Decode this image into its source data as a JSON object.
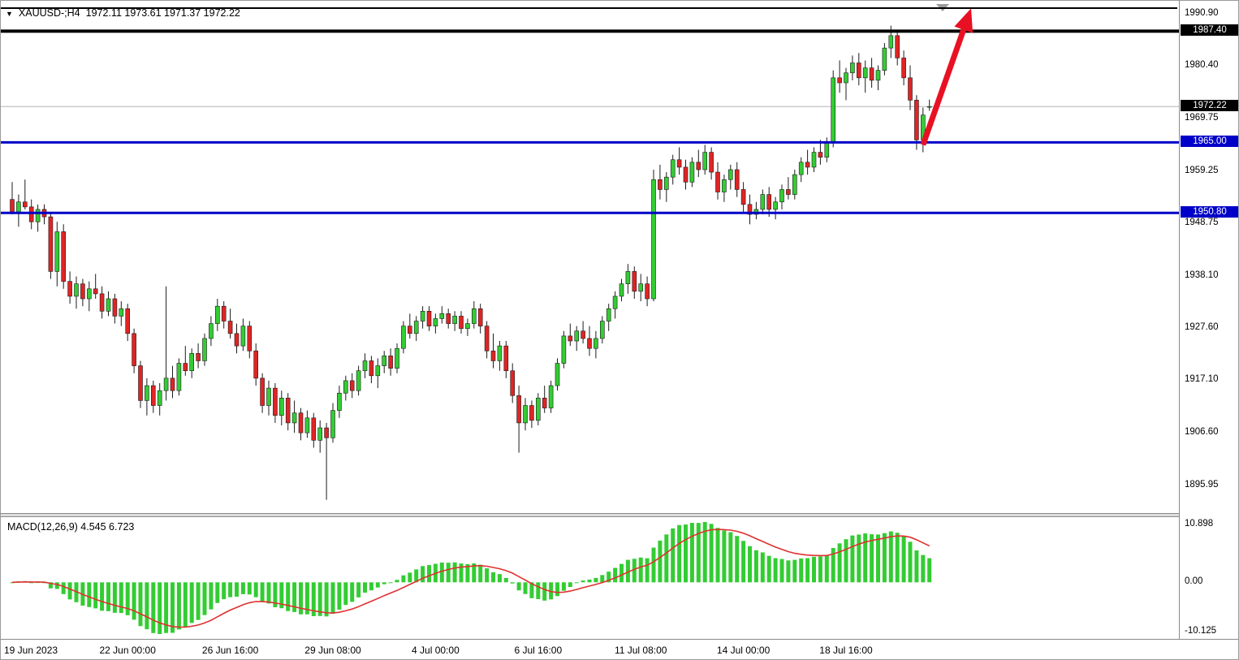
{
  "header": {
    "symbol": "XAUUSD-;H4",
    "ohlc": "1972.11 1973.61 1971.37 1972.22"
  },
  "colors": {
    "bull": "#33cc33",
    "bear": "#e02424",
    "wick": "#1c1c1c",
    "candle_border": "#1c1c1c",
    "current_price_line": "#b4b4b4",
    "black_level": "#000000",
    "blue_level": "#0000c8",
    "arrow": "#e81123",
    "shift_marker": "#9c9c9c"
  },
  "chart_data": {
    "type": "candlestick",
    "symbol": "XAUUSD-",
    "timeframe": "H4",
    "price_range": [
      1890.5,
      1992.2
    ],
    "price_scale_labels": [
      "1990.90",
      "1980.40",
      "1969.75",
      "1959.25",
      "1948.75",
      "1938.10",
      "1927.60",
      "1917.10",
      "1906.60",
      "1895.95"
    ],
    "horizontal_lines": [
      {
        "name": "resistance-line-1987-40",
        "price": 1987.4,
        "label": "1987.40",
        "color": "#000000",
        "width": 4,
        "label_bg": "#000000"
      },
      {
        "name": "support-line-1965-00",
        "price": 1965.0,
        "label": "1965.00",
        "color": "#0000c8",
        "width": 3,
        "label_bg": "#0000c8"
      },
      {
        "name": "support-line-1950-80",
        "price": 1950.8,
        "label": "1950.80",
        "color": "#0000c8",
        "width": 3,
        "label_bg": "#0000c8"
      }
    ],
    "current_price": {
      "value": 1972.22,
      "label": "1972.22",
      "label_bg": "#000000"
    },
    "annotations": [
      {
        "type": "arrow",
        "name": "bullish-trend-arrow",
        "color": "#e81123",
        "from": {
          "bar": 142,
          "price": 1964.5
        },
        "to": {
          "bar": 149.5,
          "price": 1992.0
        }
      }
    ],
    "time_labels": [
      {
        "text": "19 Jun 2023",
        "bar": 0
      },
      {
        "text": "22 Jun 00:00",
        "bar": 18
      },
      {
        "text": "26 Jun 16:00",
        "bar": 34
      },
      {
        "text": "29 Jun 08:00",
        "bar": 50
      },
      {
        "text": "4 Jul 00:00",
        "bar": 66
      },
      {
        "text": "6 Jul 16:00",
        "bar": 82
      },
      {
        "text": "11 Jul 08:00",
        "bar": 98
      },
      {
        "text": "14 Jul 00:00",
        "bar": 114
      },
      {
        "text": "18 Jul 16:00",
        "bar": 130
      }
    ],
    "indicator": {
      "name": "MACD",
      "params": [
        12,
        26,
        9
      ],
      "display": "MACD(12,26,9) 4.545 6.723",
      "values": [
        4.545,
        6.723
      ],
      "axis_labels": [
        "10.898",
        "0.00",
        "-10.125"
      ],
      "histogram_color": "#33cc33",
      "signal_color": "#e03030"
    },
    "candles": [
      [
        1953.5,
        1957.0,
        1950.5,
        1951.0
      ],
      [
        1951.0,
        1954.5,
        1948.0,
        1953.0
      ],
      [
        1953.0,
        1957.5,
        1951.5,
        1952.0
      ],
      [
        1952.0,
        1953.5,
        1947.5,
        1949.0
      ],
      [
        1949.0,
        1952.5,
        1947.0,
        1951.5
      ],
      [
        1951.5,
        1952.5,
        1948.5,
        1950.0
      ],
      [
        1950.0,
        1951.0,
        1937.5,
        1939.0
      ],
      [
        1939.0,
        1949.0,
        1936.0,
        1947.0
      ],
      [
        1947.0,
        1948.5,
        1935.5,
        1937.0
      ],
      [
        1937.0,
        1939.0,
        1932.5,
        1934.0
      ],
      [
        1934.0,
        1938.0,
        1931.5,
        1936.5
      ],
      [
        1936.5,
        1937.5,
        1932.0,
        1933.5
      ],
      [
        1933.5,
        1937.0,
        1931.0,
        1935.5
      ],
      [
        1935.5,
        1938.5,
        1933.5,
        1934.5
      ],
      [
        1934.5,
        1936.0,
        1929.5,
        1931.0
      ],
      [
        1931.0,
        1935.0,
        1930.0,
        1933.5
      ],
      [
        1933.5,
        1934.5,
        1928.5,
        1930.0
      ],
      [
        1930.0,
        1933.0,
        1928.0,
        1931.5
      ],
      [
        1931.5,
        1932.5,
        1925.0,
        1926.5
      ],
      [
        1926.5,
        1927.5,
        1918.5,
        1920.0
      ],
      [
        1920.0,
        1921.0,
        1911.5,
        1913.0
      ],
      [
        1913.0,
        1917.5,
        1910.0,
        1916.0
      ],
      [
        1916.0,
        1917.0,
        1910.5,
        1912.0
      ],
      [
        1912.0,
        1916.5,
        1910.0,
        1915.0
      ],
      [
        1915.0,
        1936.0,
        1913.0,
        1917.5
      ],
      [
        1917.5,
        1920.0,
        1913.5,
        1915.0
      ],
      [
        1915.0,
        1921.5,
        1914.0,
        1920.5
      ],
      [
        1920.5,
        1924.0,
        1918.0,
        1919.0
      ],
      [
        1919.0,
        1923.5,
        1917.5,
        1922.5
      ],
      [
        1922.5,
        1924.5,
        1919.5,
        1921.0
      ],
      [
        1921.0,
        1926.5,
        1920.0,
        1925.5
      ],
      [
        1925.5,
        1930.0,
        1924.0,
        1928.5
      ],
      [
        1928.5,
        1933.5,
        1927.0,
        1932.0
      ],
      [
        1932.0,
        1933.0,
        1927.5,
        1929.0
      ],
      [
        1929.0,
        1931.5,
        1925.5,
        1926.5
      ],
      [
        1926.5,
        1928.5,
        1922.5,
        1924.0
      ],
      [
        1924.0,
        1929.5,
        1923.0,
        1928.0
      ],
      [
        1928.0,
        1929.0,
        1921.5,
        1923.0
      ],
      [
        1923.0,
        1924.5,
        1916.0,
        1917.5
      ],
      [
        1917.5,
        1918.5,
        1910.5,
        1912.0
      ],
      [
        1912.0,
        1917.0,
        1910.0,
        1915.5
      ],
      [
        1915.5,
        1916.5,
        1908.5,
        1910.0
      ],
      [
        1910.0,
        1915.0,
        1908.0,
        1913.5
      ],
      [
        1913.5,
        1914.5,
        1907.0,
        1908.5
      ],
      [
        1908.5,
        1913.0,
        1906.5,
        1910.5
      ],
      [
        1910.5,
        1911.5,
        1905.0,
        1906.5
      ],
      [
        1906.5,
        1911.0,
        1905.5,
        1909.5
      ],
      [
        1909.5,
        1910.5,
        1903.5,
        1905.0
      ],
      [
        1905.0,
        1909.0,
        1902.5,
        1907.5
      ],
      [
        1907.5,
        1908.5,
        1893.0,
        1905.5
      ],
      [
        1905.5,
        1912.5,
        1904.5,
        1911.0
      ],
      [
        1911.0,
        1916.0,
        1909.5,
        1914.5
      ],
      [
        1914.5,
        1918.0,
        1913.0,
        1917.0
      ],
      [
        1917.0,
        1918.5,
        1913.5,
        1915.0
      ],
      [
        1915.0,
        1920.0,
        1914.0,
        1919.0
      ],
      [
        1919.0,
        1922.5,
        1917.5,
        1921.0
      ],
      [
        1921.0,
        1922.0,
        1916.5,
        1918.0
      ],
      [
        1918.0,
        1921.5,
        1915.5,
        1920.0
      ],
      [
        1920.0,
        1923.0,
        1918.5,
        1922.0
      ],
      [
        1922.0,
        1923.5,
        1918.0,
        1919.5
      ],
      [
        1919.5,
        1924.5,
        1918.5,
        1923.5
      ],
      [
        1923.5,
        1929.0,
        1922.5,
        1928.0
      ],
      [
        1928.0,
        1930.5,
        1925.5,
        1926.5
      ],
      [
        1926.5,
        1930.0,
        1925.0,
        1929.0
      ],
      [
        1929.0,
        1932.0,
        1927.5,
        1931.0
      ],
      [
        1931.0,
        1932.0,
        1927.0,
        1928.0
      ],
      [
        1928.0,
        1930.5,
        1926.5,
        1929.5
      ],
      [
        1929.5,
        1932.0,
        1928.5,
        1930.5
      ],
      [
        1930.5,
        1931.5,
        1927.5,
        1928.5
      ],
      [
        1928.5,
        1931.0,
        1927.0,
        1930.0
      ],
      [
        1930.0,
        1931.0,
        1926.5,
        1927.5
      ],
      [
        1927.5,
        1929.5,
        1926.0,
        1928.5
      ],
      [
        1928.5,
        1933.0,
        1927.5,
        1931.5
      ],
      [
        1931.5,
        1932.5,
        1926.5,
        1928.0
      ],
      [
        1928.0,
        1929.0,
        1921.5,
        1923.0
      ],
      [
        1923.0,
        1926.5,
        1919.5,
        1921.0
      ],
      [
        1921.0,
        1925.0,
        1919.0,
        1924.0
      ],
      [
        1924.0,
        1925.0,
        1917.5,
        1919.0
      ],
      [
        1919.0,
        1920.5,
        1912.5,
        1914.0
      ],
      [
        1914.0,
        1916.0,
        1902.5,
        1908.5
      ],
      [
        1908.5,
        1913.5,
        1907.0,
        1912.0
      ],
      [
        1912.0,
        1913.0,
        1907.5,
        1909.0
      ],
      [
        1909.0,
        1914.5,
        1908.0,
        1913.5
      ],
      [
        1913.5,
        1916.0,
        1910.5,
        1911.5
      ],
      [
        1911.5,
        1917.0,
        1910.5,
        1916.0
      ],
      [
        1916.0,
        1921.5,
        1915.0,
        1920.5
      ],
      [
        1920.5,
        1927.0,
        1919.5,
        1926.0
      ],
      [
        1926.0,
        1928.5,
        1924.0,
        1925.0
      ],
      [
        1925.0,
        1928.0,
        1923.0,
        1927.0
      ],
      [
        1927.0,
        1929.0,
        1924.5,
        1925.5
      ],
      [
        1925.5,
        1928.0,
        1922.0,
        1923.5
      ],
      [
        1923.5,
        1927.0,
        1921.5,
        1925.5
      ],
      [
        1925.5,
        1930.0,
        1924.5,
        1929.0
      ],
      [
        1929.0,
        1932.5,
        1927.0,
        1931.5
      ],
      [
        1931.5,
        1935.0,
        1929.5,
        1934.0
      ],
      [
        1934.0,
        1937.5,
        1933.0,
        1936.5
      ],
      [
        1936.5,
        1940.5,
        1934.5,
        1939.0
      ],
      [
        1939.0,
        1940.0,
        1933.5,
        1935.0
      ],
      [
        1935.0,
        1938.5,
        1933.0,
        1936.5
      ],
      [
        1936.5,
        1938.0,
        1932.0,
        1933.5
      ],
      [
        1933.5,
        1959.5,
        1933.0,
        1957.5
      ],
      [
        1957.5,
        1960.5,
        1953.5,
        1955.5
      ],
      [
        1955.5,
        1959.0,
        1953.0,
        1958.0
      ],
      [
        1958.0,
        1962.5,
        1956.5,
        1961.5
      ],
      [
        1961.5,
        1964.0,
        1958.5,
        1960.0
      ],
      [
        1960.0,
        1961.5,
        1955.5,
        1957.0
      ],
      [
        1957.0,
        1962.0,
        1956.0,
        1961.0
      ],
      [
        1961.0,
        1963.5,
        1958.0,
        1959.5
      ],
      [
        1959.5,
        1964.5,
        1958.5,
        1963.0
      ],
      [
        1963.0,
        1964.0,
        1957.5,
        1959.0
      ],
      [
        1959.0,
        1961.0,
        1953.5,
        1955.0
      ],
      [
        1955.0,
        1958.5,
        1953.0,
        1957.5
      ],
      [
        1957.5,
        1960.5,
        1955.5,
        1959.5
      ],
      [
        1959.5,
        1961.0,
        1954.0,
        1955.5
      ],
      [
        1955.5,
        1957.0,
        1951.0,
        1952.5
      ],
      [
        1952.5,
        1954.5,
        1948.5,
        1950.5
      ],
      [
        1950.5,
        1953.0,
        1949.5,
        1951.5
      ],
      [
        1951.5,
        1955.5,
        1950.5,
        1954.5
      ],
      [
        1954.5,
        1956.0,
        1950.0,
        1951.5
      ],
      [
        1951.5,
        1954.0,
        1949.5,
        1953.0
      ],
      [
        1953.0,
        1956.5,
        1951.5,
        1955.5
      ],
      [
        1955.5,
        1958.0,
        1953.5,
        1954.5
      ],
      [
        1954.5,
        1959.5,
        1953.5,
        1958.5
      ],
      [
        1958.5,
        1962.0,
        1957.0,
        1961.0
      ],
      [
        1961.0,
        1963.5,
        1958.5,
        1960.0
      ],
      [
        1960.0,
        1964.0,
        1959.0,
        1963.0
      ],
      [
        1963.0,
        1965.5,
        1960.5,
        1962.0
      ],
      [
        1962.0,
        1966.0,
        1961.0,
        1965.0
      ],
      [
        1965.0,
        1979.5,
        1964.0,
        1978.0
      ],
      [
        1978.0,
        1981.5,
        1975.0,
        1977.0
      ],
      [
        1977.0,
        1980.0,
        1973.5,
        1979.0
      ],
      [
        1979.0,
        1982.5,
        1977.5,
        1981.0
      ],
      [
        1981.0,
        1983.0,
        1976.5,
        1978.0
      ],
      [
        1978.0,
        1981.5,
        1975.0,
        1980.0
      ],
      [
        1980.0,
        1982.0,
        1976.0,
        1977.5
      ],
      [
        1977.5,
        1980.5,
        1975.5,
        1979.5
      ],
      [
        1979.5,
        1985.0,
        1978.5,
        1984.0
      ],
      [
        1984.0,
        1988.5,
        1982.0,
        1986.5
      ],
      [
        1986.5,
        1987.5,
        1980.5,
        1982.0
      ],
      [
        1982.0,
        1983.5,
        1976.5,
        1978.0
      ],
      [
        1978.0,
        1980.5,
        1971.5,
        1973.5
      ],
      [
        1973.5,
        1974.5,
        1963.5,
        1965.5
      ],
      [
        1965.5,
        1972.0,
        1963.0,
        1970.5
      ],
      [
        1972.11,
        1973.61,
        1971.37,
        1972.22
      ]
    ]
  }
}
